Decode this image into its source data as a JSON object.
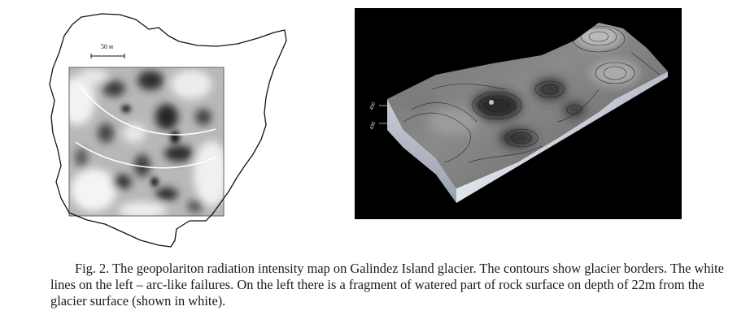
{
  "figure": {
    "left_panel": {
      "scale_bar_label": "50 м"
    },
    "right_panel": {
      "axis_label_upper": "450",
      "axis_label_lower": "430"
    }
  },
  "caption": {
    "text": "Fig. 2. The geopolariton radiation intensity map on Galindez Island glacier. The contours show glacier borders. The white lines on the left – arc-like failures. On the left there is a fragment of watered part of rock surface on depth of 22m from the glacier surface (shown in white)."
  }
}
